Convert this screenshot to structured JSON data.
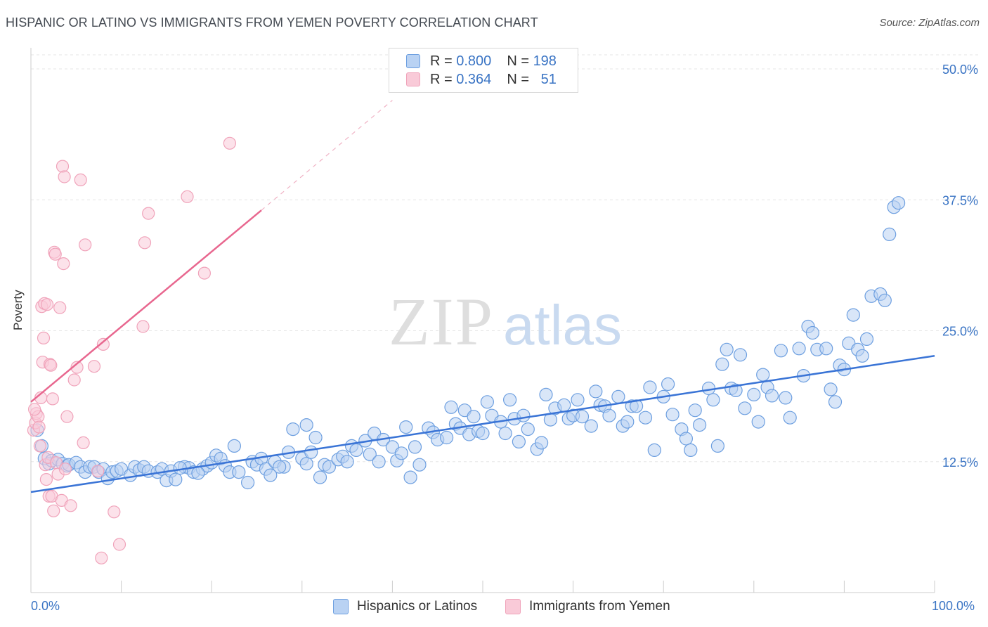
{
  "title": "HISPANIC OR LATINO VS IMMIGRANTS FROM YEMEN POVERTY CORRELATION CHART",
  "source": "Source: ZipAtlas.com",
  "watermark": {
    "zip": "ZIP",
    "atlas": "atlas"
  },
  "legend_top": {
    "rows": [
      {
        "r_label": "R =",
        "r_value": "0.800",
        "n_label": "N =",
        "n_value": "198",
        "color": "#6d9fe0"
      },
      {
        "r_label": "R =",
        "r_value": "0.364",
        "n_label": "N =",
        "n_value": "51",
        "color": "#f0a3ba"
      }
    ]
  },
  "chart_data": {
    "type": "scatter",
    "ylabel": "Poverty",
    "x_tick_labels": [
      "0.0%",
      "100.0%"
    ],
    "y_tick_labels": [
      "12.5%",
      "25.0%",
      "37.5%",
      "50.0%"
    ],
    "y_ticks": [
      12.5,
      25.0,
      37.5,
      50.0
    ],
    "xlim": [
      0,
      100
    ],
    "ylim": [
      0,
      50
    ],
    "grid": true,
    "series": [
      {
        "name": "Hispanics or Latinos",
        "color": "#6d9fe0",
        "fill": "#b9d2f3",
        "trend": {
          "x": [
            0,
            100
          ],
          "y": [
            9.6,
            22.6
          ]
        },
        "points": [
          [
            0.7,
            15.5
          ],
          [
            1.2,
            14.0
          ],
          [
            1.5,
            12.8
          ],
          [
            2,
            12.3
          ],
          [
            2.3,
            12.6
          ],
          [
            3,
            12.7
          ],
          [
            3.5,
            12.3
          ],
          [
            4,
            12.1
          ],
          [
            4.2,
            12.2
          ],
          [
            5,
            12.4
          ],
          [
            5.5,
            12.0
          ],
          [
            6,
            11.5
          ],
          [
            6.5,
            12.0
          ],
          [
            7,
            12.0
          ],
          [
            7.5,
            11.5
          ],
          [
            8,
            11.8
          ],
          [
            8.5,
            10.9
          ],
          [
            9,
            11.5
          ],
          [
            9.5,
            11.6
          ],
          [
            10,
            11.8
          ],
          [
            11,
            11.2
          ],
          [
            11.5,
            12.0
          ],
          [
            12,
            11.7
          ],
          [
            12.5,
            12.0
          ],
          [
            13,
            11.6
          ],
          [
            14,
            11.5
          ],
          [
            14.5,
            11.8
          ],
          [
            15,
            10.7
          ],
          [
            15.5,
            11.6
          ],
          [
            16,
            10.8
          ],
          [
            17,
            12.0
          ],
          [
            17.5,
            11.9
          ],
          [
            18,
            11.5
          ],
          [
            19,
            11.8
          ],
          [
            19.5,
            12.1
          ],
          [
            20,
            12.4
          ],
          [
            20.5,
            13.1
          ],
          [
            21,
            12.8
          ],
          [
            21.5,
            12.1
          ],
          [
            22,
            11.5
          ],
          [
            22.5,
            14.0
          ],
          [
            23,
            11.5
          ],
          [
            24,
            10.5
          ],
          [
            24.5,
            12.5
          ],
          [
            25,
            12.2
          ],
          [
            25.5,
            12.8
          ],
          [
            26,
            11.8
          ],
          [
            27,
            12.5
          ],
          [
            28,
            12.0
          ],
          [
            28.5,
            13.4
          ],
          [
            29,
            15.6
          ],
          [
            30,
            12.8
          ],
          [
            30.5,
            12.3
          ],
          [
            31,
            13.4
          ],
          [
            32,
            11.0
          ],
          [
            32.5,
            12.2
          ],
          [
            33,
            12.0
          ],
          [
            34,
            12.7
          ],
          [
            34.5,
            13.0
          ],
          [
            35,
            12.5
          ],
          [
            35.5,
            14.0
          ],
          [
            36,
            13.6
          ],
          [
            37,
            14.5
          ],
          [
            37.5,
            13.2
          ],
          [
            38,
            15.2
          ],
          [
            38.5,
            12.5
          ],
          [
            39,
            14.6
          ],
          [
            40,
            13.9
          ],
          [
            40.5,
            12.6
          ],
          [
            41,
            13.3
          ],
          [
            41.5,
            15.8
          ],
          [
            42,
            11.0
          ],
          [
            42.5,
            13.9
          ],
          [
            43,
            12.2
          ],
          [
            44,
            15.7
          ],
          [
            44.5,
            15.3
          ],
          [
            45,
            14.6
          ],
          [
            46,
            14.8
          ],
          [
            46.5,
            17.7
          ],
          [
            47,
            16.1
          ],
          [
            47.5,
            15.7
          ],
          [
            48,
            17.4
          ],
          [
            48.5,
            15.1
          ],
          [
            49,
            16.8
          ],
          [
            49.5,
            15.4
          ],
          [
            50,
            15.2
          ],
          [
            50.5,
            18.2
          ],
          [
            51,
            16.9
          ],
          [
            52,
            16.3
          ],
          [
            52.5,
            15.2
          ],
          [
            53,
            18.4
          ],
          [
            53.5,
            16.6
          ],
          [
            54,
            14.4
          ],
          [
            54.5,
            16.9
          ],
          [
            55,
            15.6
          ],
          [
            56,
            13.7
          ],
          [
            56.5,
            14.3
          ],
          [
            57,
            18.9
          ],
          [
            57.5,
            16.5
          ],
          [
            58,
            17.6
          ],
          [
            59,
            17.9
          ],
          [
            59.5,
            16.6
          ],
          [
            60,
            16.9
          ],
          [
            60.5,
            18.4
          ],
          [
            61,
            16.8
          ],
          [
            62,
            15.9
          ],
          [
            62.5,
            19.2
          ],
          [
            63,
            17.9
          ],
          [
            63.5,
            17.8
          ],
          [
            64,
            16.9
          ],
          [
            65,
            18.7
          ],
          [
            65.5,
            15.9
          ],
          [
            66,
            16.3
          ],
          [
            66.5,
            17.8
          ],
          [
            67,
            17.8
          ],
          [
            68,
            16.7
          ],
          [
            68.5,
            19.6
          ],
          [
            69,
            13.6
          ],
          [
            70,
            18.7
          ],
          [
            70.5,
            19.9
          ],
          [
            71,
            17.0
          ],
          [
            72,
            15.6
          ],
          [
            72.5,
            14.7
          ],
          [
            73,
            13.6
          ],
          [
            73.5,
            17.4
          ],
          [
            74,
            16.0
          ],
          [
            75,
            19.5
          ],
          [
            75.5,
            18.4
          ],
          [
            76,
            14.0
          ],
          [
            76.5,
            21.8
          ],
          [
            77,
            23.2
          ],
          [
            77.5,
            19.5
          ],
          [
            78,
            19.3
          ],
          [
            78.5,
            22.7
          ],
          [
            79,
            17.6
          ],
          [
            80,
            18.9
          ],
          [
            80.5,
            16.3
          ],
          [
            81,
            20.8
          ],
          [
            81.5,
            19.6
          ],
          [
            82,
            18.8
          ],
          [
            83,
            23.1
          ],
          [
            83.5,
            18.6
          ],
          [
            84,
            16.7
          ],
          [
            85,
            23.3
          ],
          [
            85.5,
            20.7
          ],
          [
            86,
            25.4
          ],
          [
            86.5,
            24.8
          ],
          [
            87,
            23.2
          ],
          [
            88,
            23.3
          ],
          [
            88.5,
            19.4
          ],
          [
            89,
            18.2
          ],
          [
            89.5,
            21.7
          ],
          [
            90,
            21.3
          ],
          [
            90.5,
            23.8
          ],
          [
            91,
            26.5
          ],
          [
            91.5,
            23.2
          ],
          [
            92,
            22.6
          ],
          [
            92.5,
            24.2
          ],
          [
            93,
            28.3
          ],
          [
            94,
            28.5
          ],
          [
            94.5,
            27.9
          ],
          [
            95,
            34.2
          ],
          [
            95.5,
            36.8
          ],
          [
            96,
            37.2
          ],
          [
            30.5,
            16.0
          ],
          [
            31.5,
            14.8
          ],
          [
            27.5,
            12.0
          ],
          [
            26.5,
            11.2
          ],
          [
            18.5,
            11.4
          ],
          [
            16.5,
            11.9
          ]
        ]
      },
      {
        "name": "Immigrants from Yemen",
        "color": "#f0a3ba",
        "fill": "#f9cad8",
        "trend": {
          "x": [
            0,
            25.5
          ],
          "y": [
            18.2,
            36.5
          ],
          "dashed_to": {
            "x": 40,
            "y": 47
          }
        },
        "points": [
          [
            0.3,
            15.5
          ],
          [
            0.5,
            16.2
          ],
          [
            0.6,
            17.1
          ],
          [
            0.8,
            16.8
          ],
          [
            0.9,
            15.8
          ],
          [
            1.0,
            14.0
          ],
          [
            1.1,
            18.6
          ],
          [
            1.2,
            27.3
          ],
          [
            1.3,
            22.0
          ],
          [
            1.4,
            24.3
          ],
          [
            1.5,
            27.6
          ],
          [
            1.6,
            12.2
          ],
          [
            1.7,
            10.8
          ],
          [
            1.8,
            27.5
          ],
          [
            1.9,
            12.9
          ],
          [
            2.0,
            9.2
          ],
          [
            2.1,
            21.8
          ],
          [
            2.2,
            21.7
          ],
          [
            2.3,
            9.2
          ],
          [
            2.4,
            18.5
          ],
          [
            2.5,
            7.8
          ],
          [
            2.6,
            32.5
          ],
          [
            2.7,
            32.3
          ],
          [
            2.8,
            12.4
          ],
          [
            3.0,
            11.3
          ],
          [
            3.2,
            27.2
          ],
          [
            3.4,
            8.8
          ],
          [
            3.5,
            40.7
          ],
          [
            3.6,
            31.4
          ],
          [
            3.7,
            39.7
          ],
          [
            3.8,
            11.8
          ],
          [
            4.0,
            16.8
          ],
          [
            4.4,
            8.3
          ],
          [
            4.8,
            20.3
          ],
          [
            5.1,
            21.5
          ],
          [
            5.5,
            39.4
          ],
          [
            5.8,
            14.3
          ],
          [
            6.0,
            33.2
          ],
          [
            7.0,
            21.6
          ],
          [
            7.4,
            11.6
          ],
          [
            7.8,
            3.3
          ],
          [
            8.0,
            23.7
          ],
          [
            9.2,
            7.7
          ],
          [
            9.8,
            4.6
          ],
          [
            12.4,
            25.4
          ],
          [
            12.6,
            33.4
          ],
          [
            13.0,
            36.2
          ],
          [
            17.3,
            37.8
          ],
          [
            19.2,
            30.5
          ],
          [
            22.0,
            42.9
          ],
          [
            0.4,
            17.5
          ]
        ]
      }
    ]
  }
}
